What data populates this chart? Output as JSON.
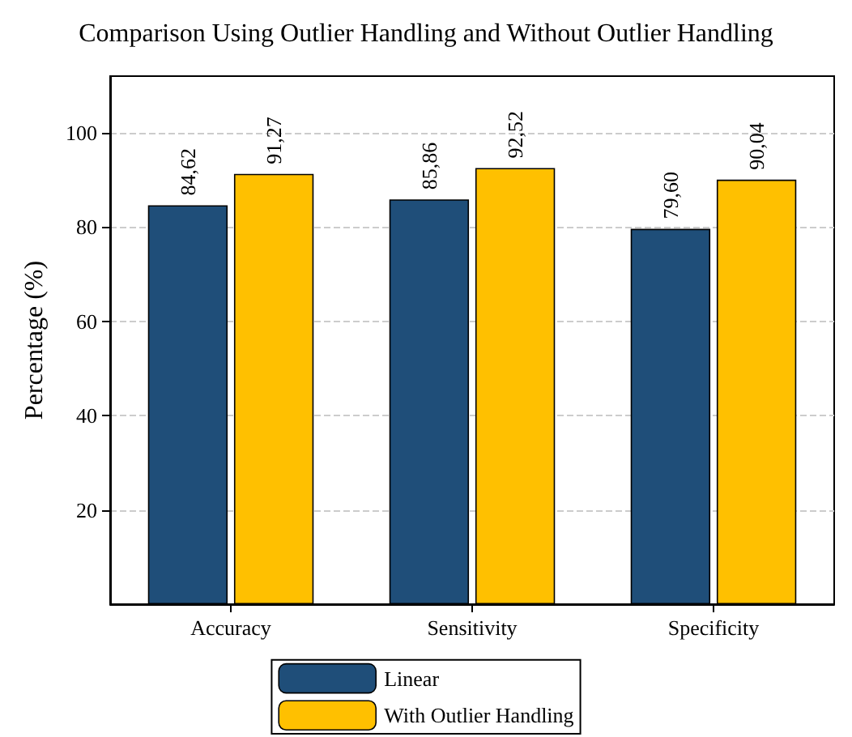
{
  "chart_data": {
    "type": "bar",
    "title": "Comparison Using Outlier Handling and Without Outlier Handling",
    "ylabel": "Percentage (%)",
    "categories": [
      "Accuracy",
      "Sensitivity",
      "Specificity"
    ],
    "series": [
      {
        "name": "Linear",
        "color": "#1f4e79",
        "values": [
          84.62,
          85.86,
          79.6
        ],
        "value_labels": [
          "84,62",
          "85,86",
          "79,60"
        ]
      },
      {
        "name": "With Outlier Handling",
        "color": "#ffc000",
        "values": [
          91.27,
          92.52,
          90.04
        ],
        "value_labels": [
          "91,27",
          "92,52",
          "90,04"
        ]
      }
    ],
    "ylim": [
      0,
      112
    ],
    "yticks": [
      20,
      40,
      60,
      80,
      100
    ],
    "grid": "y",
    "legend": "bottom"
  }
}
